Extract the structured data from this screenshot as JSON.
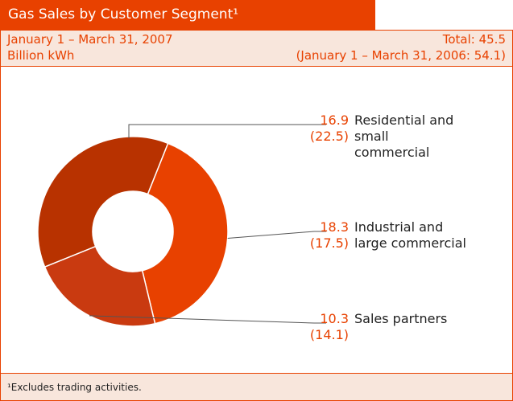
{
  "chart_data": {
    "type": "donut",
    "title": "Gas Sales by Customer Segment¹",
    "period": "January 1 – March 31, 2007",
    "unit": "Billion kWh",
    "total_label": "Total: 45.5",
    "prior_period": "(January 1 – March 31, 2006: 54.1)",
    "categories": [
      "Residential and small commercial",
      "Industrial and large commercial",
      "Sales partners"
    ],
    "values": [
      16.9,
      18.3,
      10.3
    ],
    "prior_labels": [
      "(22.5)",
      "(17.5)",
      "(14.1)"
    ],
    "colors": [
      "#b83200",
      "#e84100",
      "#c93a10"
    ],
    "footnote": "¹Excludes trading activities."
  }
}
